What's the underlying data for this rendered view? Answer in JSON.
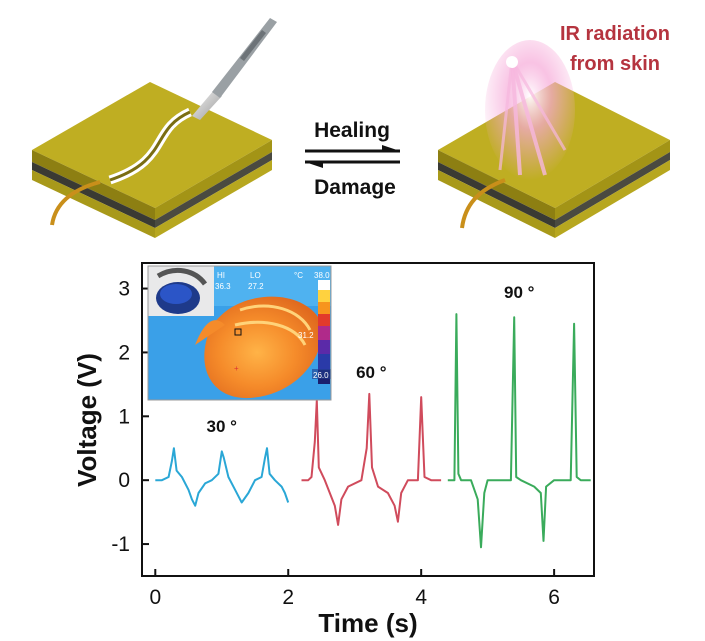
{
  "top_panel": {
    "healing_label": "Healing",
    "damage_label": "Damage",
    "ir_label_line1": "IR radiation",
    "ir_label_line2": "from skin"
  },
  "inset": {
    "hi_label": "HI",
    "hi_value": "36.3",
    "lo_label": "LO",
    "lo_value": "27.2",
    "unit_label": "°C",
    "scale_max": "38.0",
    "scale_mid": "31.2",
    "scale_min": "26.0"
  },
  "colors": {
    "series_30": "#2aa7d6",
    "series_60": "#d04b5c",
    "series_90": "#3aab5b",
    "ir_text": "#b5343f",
    "electrode_gold": "#c8b72a"
  },
  "chart_data": {
    "type": "line",
    "xlabel": "Time (s)",
    "ylabel": "Voltage (V)",
    "xlim": [
      -0.2,
      6.6
    ],
    "ylim": [
      -1.5,
      3.4
    ],
    "x_ticks": [
      0,
      2,
      4,
      6
    ],
    "y_ticks": [
      -1,
      0,
      1,
      2,
      3
    ],
    "grid": false,
    "series": [
      {
        "name": "30 °",
        "color": "#2aa7d6",
        "x": [
          0.0,
          0.1,
          0.2,
          0.25,
          0.28,
          0.32,
          0.4,
          0.5,
          0.55,
          0.6,
          0.65,
          0.75,
          0.85,
          0.95,
          1.0,
          1.03,
          1.1,
          1.2,
          1.25,
          1.3,
          1.4,
          1.5,
          1.6,
          1.65,
          1.68,
          1.72,
          1.8,
          1.9,
          1.95,
          2.0
        ],
        "values": [
          0.0,
          0.0,
          0.05,
          0.3,
          0.5,
          0.15,
          0.05,
          -0.15,
          -0.3,
          -0.4,
          -0.2,
          -0.05,
          0.0,
          0.1,
          0.45,
          0.35,
          0.05,
          -0.15,
          -0.25,
          -0.35,
          -0.2,
          0.0,
          0.05,
          0.35,
          0.5,
          0.1,
          0.0,
          -0.1,
          -0.2,
          -0.35
        ],
        "label": "30 °"
      },
      {
        "name": "60 °",
        "color": "#d04b5c",
        "x": [
          2.2,
          2.3,
          2.35,
          2.4,
          2.43,
          2.46,
          2.55,
          2.7,
          2.75,
          2.8,
          2.9,
          3.1,
          3.18,
          3.22,
          3.26,
          3.35,
          3.5,
          3.6,
          3.65,
          3.7,
          3.8,
          3.95,
          4.0,
          4.05,
          4.15,
          4.3
        ],
        "values": [
          0.0,
          0.0,
          0.05,
          0.6,
          1.25,
          0.2,
          0.0,
          -0.4,
          -0.7,
          -0.3,
          -0.1,
          0.0,
          0.5,
          1.35,
          0.2,
          -0.1,
          -0.2,
          -0.4,
          -0.65,
          -0.2,
          0.0,
          0.0,
          1.3,
          0.05,
          0.0,
          0.0
        ],
        "label": "60 °"
      },
      {
        "name": "90 °",
        "color": "#3aab5b",
        "x": [
          4.4,
          4.5,
          4.53,
          4.56,
          4.6,
          4.75,
          4.85,
          4.9,
          4.95,
          5.0,
          5.1,
          5.35,
          5.4,
          5.43,
          5.5,
          5.7,
          5.8,
          5.84,
          5.88,
          6.0,
          6.25,
          6.3,
          6.34,
          6.4,
          6.55
        ],
        "values": [
          0.0,
          0.0,
          2.6,
          0.1,
          0.0,
          0.0,
          -0.3,
          -1.05,
          -0.2,
          0.0,
          0.0,
          0.0,
          2.55,
          0.05,
          0.0,
          -0.1,
          -0.2,
          -0.95,
          -0.1,
          0.0,
          0.0,
          2.45,
          0.05,
          0.0,
          0.0
        ],
        "label": "90 °"
      }
    ]
  }
}
